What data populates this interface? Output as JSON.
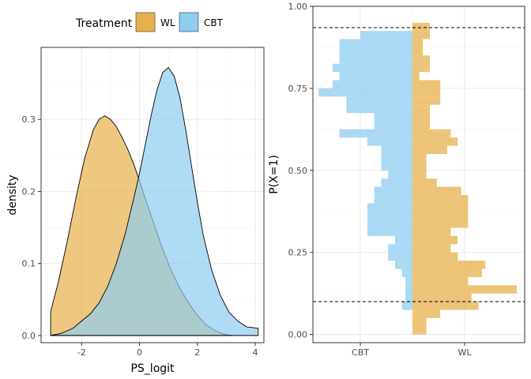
{
  "legend": {
    "title": "Treatment",
    "placement": "top",
    "entries": [
      {
        "key": "WL",
        "label": "WL",
        "color": "#E7B04A"
      },
      {
        "key": "CBT",
        "label": "CBT",
        "color": "#8ECCF0"
      }
    ]
  },
  "chart_data": [
    {
      "type": "area",
      "xlabel": "PS_logit",
      "ylabel": "density",
      "xlim": [
        -3.4,
        4.3
      ],
      "ylim": [
        -0.01,
        0.4
      ],
      "x_ticks": [
        -2,
        0,
        2,
        4
      ],
      "y_ticks": [
        0.0,
        0.1,
        0.2,
        0.3
      ],
      "y_tick_labels": [
        "0.0",
        "0.1",
        "0.2",
        "0.3"
      ],
      "grid": true,
      "series": [
        {
          "name": "WL",
          "color": "#E7B04A",
          "x": [
            -3.07,
            -2.8,
            -2.5,
            -2.2,
            -1.9,
            -1.6,
            -1.4,
            -1.2,
            -1.0,
            -0.8,
            -0.6,
            -0.4,
            -0.2,
            0.0,
            0.2,
            0.5,
            0.8,
            1.1,
            1.4,
            1.7,
            2.0,
            2.3,
            2.6,
            2.9,
            3.2
          ],
          "y": [
            0.033,
            0.075,
            0.13,
            0.19,
            0.245,
            0.285,
            0.3,
            0.305,
            0.3,
            0.29,
            0.275,
            0.258,
            0.238,
            0.215,
            0.19,
            0.155,
            0.12,
            0.09,
            0.065,
            0.045,
            0.028,
            0.015,
            0.007,
            0.002,
            0.0
          ]
        },
        {
          "name": "CBT",
          "color": "#8ECCF0",
          "x": [
            -3.07,
            -2.7,
            -2.3,
            -2.0,
            -1.7,
            -1.4,
            -1.1,
            -0.8,
            -0.5,
            -0.2,
            0.0,
            0.2,
            0.4,
            0.6,
            0.8,
            1.0,
            1.2,
            1.4,
            1.6,
            1.8,
            2.0,
            2.2,
            2.5,
            2.8,
            3.1,
            3.4,
            3.7,
            4.1
          ],
          "y": [
            0.0,
            0.003,
            0.01,
            0.02,
            0.03,
            0.045,
            0.068,
            0.1,
            0.14,
            0.19,
            0.225,
            0.265,
            0.305,
            0.34,
            0.365,
            0.372,
            0.36,
            0.33,
            0.285,
            0.235,
            0.185,
            0.14,
            0.09,
            0.055,
            0.032,
            0.02,
            0.012,
            0.01
          ]
        }
      ]
    },
    {
      "type": "bar",
      "orientation": "mirrored-horizontal-histogram",
      "ylabel": "P(X=1)",
      "ylim": [
        -0.025,
        1.0
      ],
      "y_ticks": [
        0.0,
        0.25,
        0.5,
        0.75,
        1.0
      ],
      "y_tick_labels": [
        "0.00",
        "0.25",
        "0.50",
        "0.75",
        "1.00"
      ],
      "x_tick_labels": [
        "CBT",
        "WL"
      ],
      "bin_width": 0.025,
      "grid": true,
      "reference_lines": [
        0.1,
        0.935
      ],
      "bins_start": [
        0.0,
        0.025,
        0.05,
        0.075,
        0.1,
        0.125,
        0.15,
        0.175,
        0.2,
        0.225,
        0.25,
        0.275,
        0.3,
        0.325,
        0.35,
        0.375,
        0.4,
        0.425,
        0.45,
        0.475,
        0.5,
        0.525,
        0.55,
        0.575,
        0.6,
        0.625,
        0.65,
        0.675,
        0.7,
        0.725,
        0.75,
        0.775,
        0.8,
        0.825,
        0.85,
        0.875,
        0.9,
        0.925
      ],
      "series": [
        {
          "name": "CBT",
          "color": "#8ECCF0",
          "side": "left",
          "values": [
            0,
            0,
            0,
            0.3,
            0.2,
            0.2,
            0.2,
            0.3,
            0.5,
            0.7,
            0.7,
            0.5,
            1.3,
            1.3,
            1.3,
            1.3,
            1.1,
            1.1,
            0.9,
            0.7,
            0.9,
            0.9,
            0.9,
            1.3,
            2.1,
            1.1,
            1.1,
            1.9,
            1.9,
            2.7,
            2.3,
            2.1,
            2.3,
            2.1,
            2.1,
            2.1,
            1.5,
            0
          ]
        },
        {
          "name": "WL",
          "color": "#E7B04A",
          "side": "right",
          "values": [
            0.4,
            0.4,
            0.8,
            1.9,
            1.7,
            3.0,
            1.6,
            2.0,
            2.1,
            1.3,
            1.1,
            1.3,
            1.1,
            1.6,
            1.6,
            1.6,
            1.6,
            1.4,
            0.7,
            0.4,
            0.4,
            0.4,
            1.0,
            1.3,
            1.1,
            0.5,
            0.5,
            0.5,
            0.8,
            0.8,
            0.8,
            0.2,
            0.5,
            0.5,
            0.3,
            0.3,
            0.5,
            0.5
          ]
        }
      ]
    }
  ]
}
